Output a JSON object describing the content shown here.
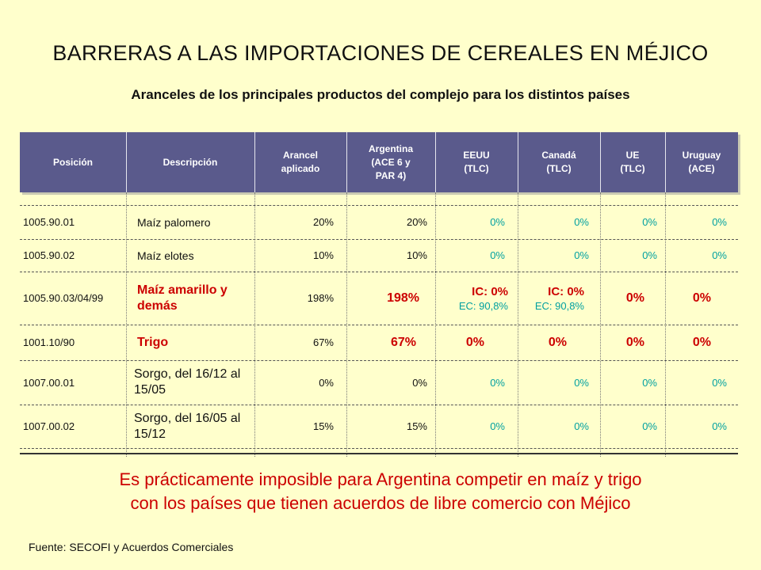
{
  "title": "BARRERAS A LAS IMPORTACIONES DE CEREALES EN MÉJICO",
  "subtitle": "Aranceles de los principales productos del complejo para los distintos países",
  "headers": {
    "posicion": "Posición",
    "descripcion": "Descripción",
    "arancel": [
      "Arancel",
      "aplicado"
    ],
    "argentina": [
      "Argentina",
      "(ACE 6 y",
      "PAR 4)"
    ],
    "eeuu": [
      "EEUU",
      "(TLC)"
    ],
    "canada": [
      "Canadá",
      "(TLC)"
    ],
    "ue": [
      "UE",
      "(TLC)"
    ],
    "uruguay": [
      "Uruguay",
      "(ACE)"
    ]
  },
  "rows": [
    {
      "posicion": "1005.90.01",
      "descripcion": [
        "Maíz palomero"
      ],
      "arancel": "20%",
      "argentina": "20%",
      "eeuu": "0%",
      "canada": "0%",
      "ue": "0%",
      "uruguay": "0%"
    },
    {
      "posicion": "1005.90.02",
      "descripcion": [
        "Maíz elotes"
      ],
      "arancel": "10%",
      "argentina": "10%",
      "eeuu": "0%",
      "canada": "0%",
      "ue": "0%",
      "uruguay": "0%"
    },
    {
      "posicion": "1005.90.03/04/99",
      "descripcion": [
        "Maíz amarillo y",
        "demás"
      ],
      "arancel": "198%",
      "argentina": "198%",
      "eeuu": [
        "IC: 0%",
        "EC: 90,8%"
      ],
      "canada": [
        "IC: 0%",
        "EC: 90,8%"
      ],
      "ue": "0%",
      "uruguay": "0%"
    },
    {
      "posicion": "1001.10/90",
      "descripcion": [
        "Trigo"
      ],
      "arancel": "67%",
      "argentina": "67%",
      "eeuu": "0%",
      "canada": "0%",
      "ue": "0%",
      "uruguay": "0%"
    },
    {
      "posicion": "1007.00.01",
      "descripcion": [
        "Sorgo, del 16/12 al",
        "15/05"
      ],
      "arancel": "0%",
      "argentina": "0%",
      "eeuu": "0%",
      "canada": "0%",
      "ue": "0%",
      "uruguay": "0%"
    },
    {
      "posicion": "1007.00.02",
      "descripcion": [
        "Sorgo, del 16/05 al",
        "15/12"
      ],
      "arancel": "15%",
      "argentina": "15%",
      "eeuu": "0%",
      "canada": "0%",
      "ue": "0%",
      "uruguay": "0%"
    }
  ],
  "conclusion": [
    "Es prácticamente imposible para Argentina competir en maíz y trigo",
    "con los países que tienen acuerdos de libre comercio con Méjico"
  ],
  "source": "Fuente: SECOFI y Acuerdos Comerciales",
  "colors": {
    "header_bg": "#5a5a8c",
    "background": "#ffffcc",
    "highlight": "#cc0000",
    "zero": "#00a0a0"
  }
}
